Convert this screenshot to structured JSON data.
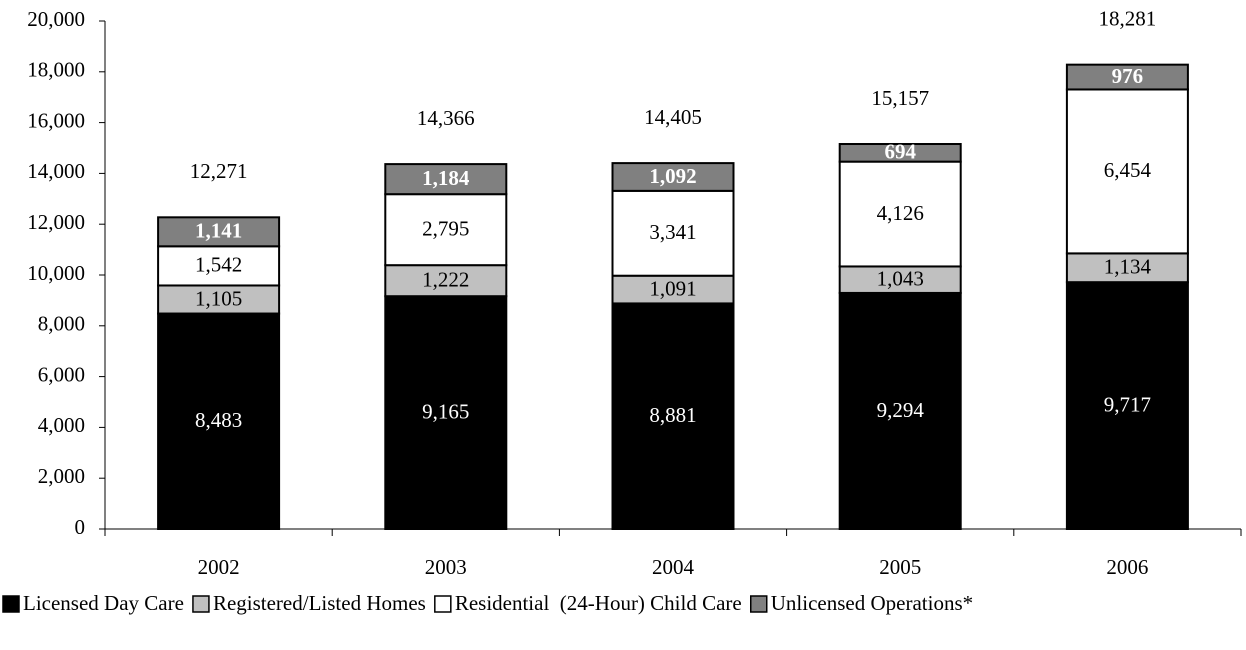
{
  "chart_data": {
    "type": "stacked_bar",
    "categories": [
      "2002",
      "2003",
      "2004",
      "2005",
      "2006"
    ],
    "series": [
      {
        "name": "Licensed Day Care",
        "color": "#000000",
        "label_color": "#ffffff",
        "label_bold": false,
        "values": [
          8483,
          9165,
          8881,
          9294,
          9717
        ],
        "value_labels": [
          "8,483",
          "9,165",
          "8,881",
          "9,294",
          "9,717"
        ]
      },
      {
        "name": "Registered/Listed Homes",
        "color": "#c0c0c0",
        "label_color": "#000000",
        "label_bold": false,
        "values": [
          1105,
          1222,
          1091,
          1043,
          1134
        ],
        "value_labels": [
          "1,105",
          "1,222",
          "1,091",
          "1,043",
          "1,134"
        ]
      },
      {
        "name": "Residential  (24-Hour) Child Care",
        "color": "#ffffff",
        "label_color": "#000000",
        "label_bold": false,
        "values": [
          1542,
          2795,
          3341,
          4126,
          6454
        ],
        "value_labels": [
          "1,542",
          "2,795",
          "3,341",
          "4,126",
          "6,454"
        ]
      },
      {
        "name": "Unlicensed Operations*",
        "color": "#808080",
        "label_color": "#ffffff",
        "label_bold": true,
        "values": [
          1141,
          1184,
          1092,
          694,
          976
        ],
        "value_labels": [
          "1,141",
          "1,184",
          "1,092",
          "694",
          "976"
        ]
      }
    ],
    "totals": [
      12271,
      14366,
      14405,
      15157,
      18281
    ],
    "total_labels": [
      "12,271",
      "14,366",
      "14,405",
      "15,157",
      "18,281"
    ],
    "ylim": [
      0,
      20000
    ],
    "yticks": [
      0,
      {
        "value": 2000,
        "label": "2,000"
      },
      {
        "value": 4000,
        "label": "4,000"
      },
      {
        "value": 6000,
        "label": "6,000"
      },
      {
        "value": 8000,
        "label": "8,000"
      },
      {
        "value": 10000,
        "label": "10,000"
      },
      {
        "value": 12000,
        "label": "12,000"
      },
      {
        "value": 14000,
        "label": "14,000"
      },
      {
        "value": 16000,
        "label": "16,000"
      },
      {
        "value": 18000,
        "label": "18,000"
      },
      {
        "value": 20000,
        "label": "20,000"
      }
    ],
    "grid": false,
    "legend": "bottom"
  }
}
